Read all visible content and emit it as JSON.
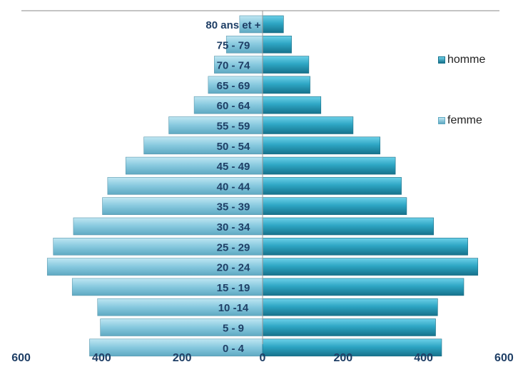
{
  "chart_data": {
    "type": "bar",
    "orientation": "horizontal",
    "categories": [
      "0 - 4",
      "5 - 9",
      "10 -14",
      "15 - 19",
      "20 - 24",
      "25 - 29",
      "30 - 34",
      "35 - 39",
      "40 - 44",
      "45 - 49",
      "50 - 54",
      "55 - 59",
      "60 - 64",
      "65 - 69",
      "70 - 74",
      "75 - 79",
      "80 ans et +"
    ],
    "series": [
      {
        "name": "homme",
        "color": "#2b9fbd",
        "values": [
          445,
          430,
          435,
          500,
          535,
          510,
          425,
          358,
          345,
          330,
          292,
          225,
          145,
          118,
          115,
          72,
          52
        ]
      },
      {
        "name": "femme",
        "color": "#7fc6de",
        "values": [
          430,
          403,
          410,
          473,
          535,
          520,
          470,
          398,
          385,
          340,
          295,
          233,
          170,
          135,
          120,
          90,
          57
        ]
      }
    ],
    "xlim": [
      -600,
      600
    ],
    "xticks": [
      -600,
      -400,
      -200,
      0,
      200,
      400,
      600
    ],
    "xtick_labels": [
      "600",
      "400",
      "200",
      "0",
      "200",
      "400",
      "600"
    ],
    "legend_position": "right",
    "grid": false
  },
  "legend": {
    "homme": "homme",
    "femme": "femme"
  }
}
